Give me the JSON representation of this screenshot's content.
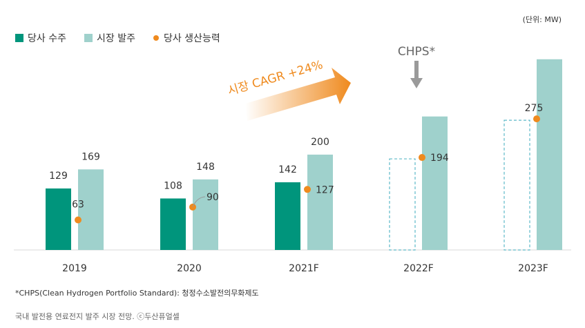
{
  "unit_label": "(단위: MW)",
  "legend": {
    "company_orders": "당사 수주",
    "market_orders": "시장 발주",
    "company_capacity": "당사 생산능력"
  },
  "cagr_label": "시장 CAGR +24%",
  "chps_label": "CHPS*",
  "footnote": "*CHPS(Clean Hydrogen Portfolio Standard): 청정수소발전의무화제도",
  "caption": "국내 발전용 연료전지 발주 시장 전망. ⓒ두산퓨얼셀",
  "colors": {
    "company_orders": "#00957c",
    "market_orders": "#9fd1cc",
    "company_capacity": "#ef8a1e",
    "dashed_outline": "#5cb9c8"
  },
  "chart_data": {
    "type": "bar",
    "categories": [
      "2019",
      "2020",
      "2021F",
      "2022F",
      "2023F"
    ],
    "series": [
      {
        "name": "당사 수주",
        "kind": "bar",
        "values": [
          129,
          108,
          142,
          null,
          null
        ]
      },
      {
        "name": "시장 발주",
        "kind": "bar",
        "values": [
          169,
          148,
          200,
          280,
          400
        ]
      },
      {
        "name": "당사 생산능력",
        "kind": "point",
        "values": [
          63,
          90,
          127,
          194,
          275
        ]
      }
    ],
    "data_labels": {
      "당사 수주": [
        "129",
        "108",
        "142",
        "",
        ""
      ],
      "시장 발주": [
        "169",
        "148",
        "200",
        "",
        ""
      ],
      "당사 생산능력": [
        "63",
        "90",
        "127",
        "194",
        "275"
      ]
    },
    "ylim": [
      0,
      420
    ],
    "grid": false,
    "legend_position": "top-left"
  }
}
